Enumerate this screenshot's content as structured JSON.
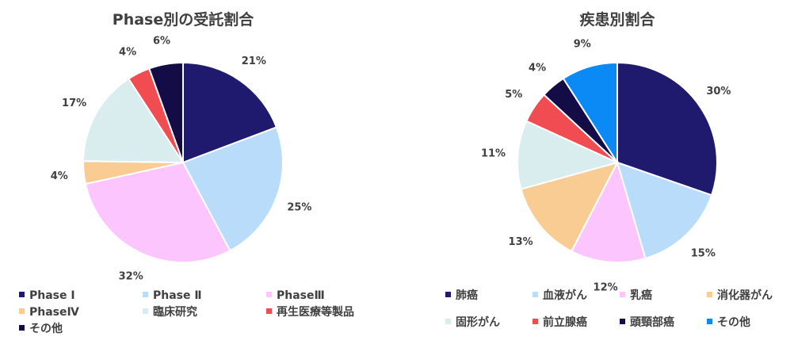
{
  "chart_data": [
    {
      "type": "pie",
      "title": "Phase別の受託割合",
      "categories": [
        "Phase Ⅰ",
        "Phase Ⅱ",
        "PhaseⅢ",
        "PhaseⅣ",
        "臨床研究",
        "再生医療等製品",
        "その他"
      ],
      "values": [
        21,
        25,
        32,
        4,
        17,
        4,
        6
      ],
      "labels": [
        "21%",
        "25%",
        "32%",
        "4%",
        "17%",
        "4%",
        "6%"
      ],
      "colors": [
        "#1f1a6e",
        "#b9dcfb",
        "#fcc5fd",
        "#f8cc93",
        "#d9ecee",
        "#f14c52",
        "#130c46"
      ],
      "legend_position": "bottom"
    },
    {
      "type": "pie",
      "title": "疾患別割合",
      "categories": [
        "肺癌",
        "血液がん",
        "乳癌",
        "消化器がん",
        "固形がん",
        "前立腺癌",
        "頭頸部癌",
        "その他"
      ],
      "values": [
        30,
        15,
        12,
        13,
        11,
        5,
        4,
        9
      ],
      "labels": [
        "30%",
        "15%",
        "12%",
        "13%",
        "11%",
        "5%",
        "4%",
        "9%"
      ],
      "colors": [
        "#1f1a6e",
        "#b9dcfb",
        "#fcc5fd",
        "#f8cc93",
        "#d9ecee",
        "#f14c52",
        "#130c46",
        "#0b8af5"
      ],
      "legend_position": "bottom"
    }
  ]
}
